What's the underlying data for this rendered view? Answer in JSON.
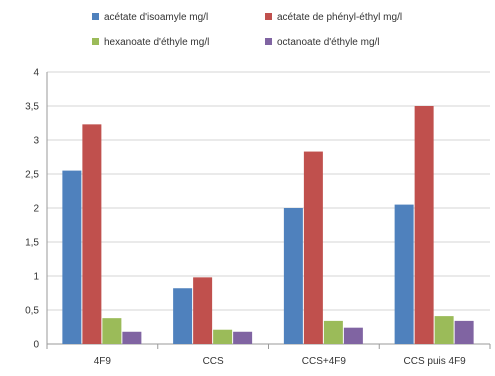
{
  "chart_data": {
    "type": "bar",
    "categories": [
      "4F9",
      "CCS",
      "CCS+4F9",
      "CCS puis 4F9"
    ],
    "series": [
      {
        "name": "acétate d'isoamyle mg/l",
        "color": "#4f81bd",
        "values": [
          2.55,
          0.82,
          2.0,
          2.05
        ]
      },
      {
        "name": "acétate de phényl-éthyl mg/l",
        "color": "#c0504d",
        "values": [
          3.23,
          0.98,
          2.83,
          3.5
        ]
      },
      {
        "name": "hexanoate d'éthyle mg/l",
        "color": "#9bbb59",
        "values": [
          0.38,
          0.21,
          0.34,
          0.41
        ]
      },
      {
        "name": "octanoate d'éthyle mg/l",
        "color": "#8064a2",
        "values": [
          0.18,
          0.18,
          0.24,
          0.34
        ]
      }
    ],
    "ylim": [
      0,
      4
    ],
    "yticks": [
      "0",
      "0,5",
      "1",
      "1,5",
      "2",
      "2,5",
      "3",
      "3,5",
      "4"
    ],
    "yticks_values": [
      0,
      0.5,
      1,
      1.5,
      2,
      2.5,
      3,
      3.5,
      4
    ],
    "grid": true,
    "legend_position": "top",
    "title": "",
    "xlabel": "",
    "ylabel": ""
  }
}
